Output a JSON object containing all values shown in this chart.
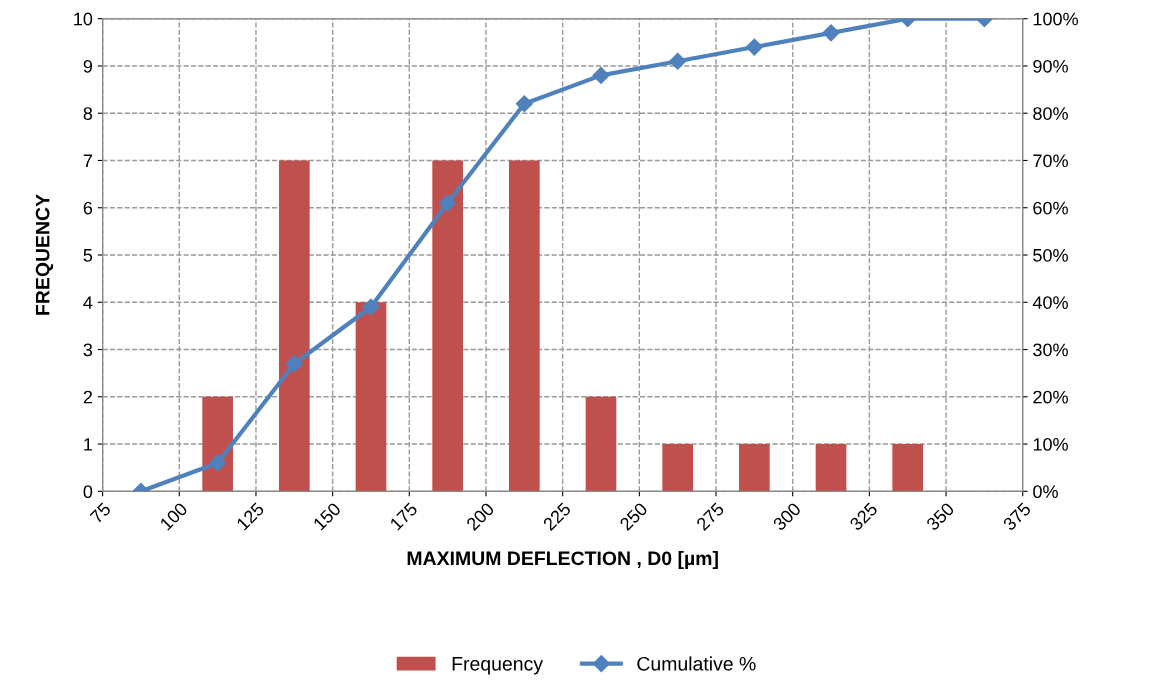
{
  "chart_data": {
    "type": "bar",
    "xlabel": "MAXIMUM DEFLECTION , D0 [µm]",
    "ylabel": "FREQUENCY",
    "x": [
      87.5,
      112.5,
      137.5,
      162.5,
      187.5,
      212.5,
      237.5,
      262.5,
      287.5,
      312.5,
      337.5,
      362.5
    ],
    "series": [
      {
        "name": "Frequency",
        "color": "#c0504d",
        "values": [
          0,
          2,
          7,
          4,
          7,
          7,
          2,
          1,
          1,
          1,
          1,
          0
        ]
      },
      {
        "name": "Cumulative %",
        "type": "line",
        "axis": "y2",
        "color": "#4f81bd",
        "marker": "diamond",
        "values": [
          0,
          6,
          27,
          39,
          61,
          82,
          88,
          91,
          94,
          97,
          100,
          100
        ]
      }
    ],
    "xlim": [
      75,
      375
    ],
    "xticks": [
      75,
      100,
      125,
      150,
      175,
      200,
      225,
      250,
      275,
      300,
      325,
      350,
      375
    ],
    "ylim": [
      0,
      10
    ],
    "yticks": [
      0,
      1,
      2,
      3,
      4,
      5,
      6,
      7,
      8,
      9,
      10
    ],
    "y2lim": [
      0,
      100
    ],
    "y2ticks": [
      {
        "value": 0,
        "label": "0%"
      },
      {
        "value": 10,
        "label": "10%"
      },
      {
        "value": 20,
        "label": "20%"
      },
      {
        "value": 30,
        "label": "30%"
      },
      {
        "value": 40,
        "label": "40%"
      },
      {
        "value": 50,
        "label": "50%"
      },
      {
        "value": 60,
        "label": "60%"
      },
      {
        "value": 70,
        "label": "70%"
      },
      {
        "value": 80,
        "label": "80%"
      },
      {
        "value": 90,
        "label": "90%"
      },
      {
        "value": 100,
        "label": "100%"
      }
    ],
    "grid": true,
    "legend": "bottom"
  }
}
